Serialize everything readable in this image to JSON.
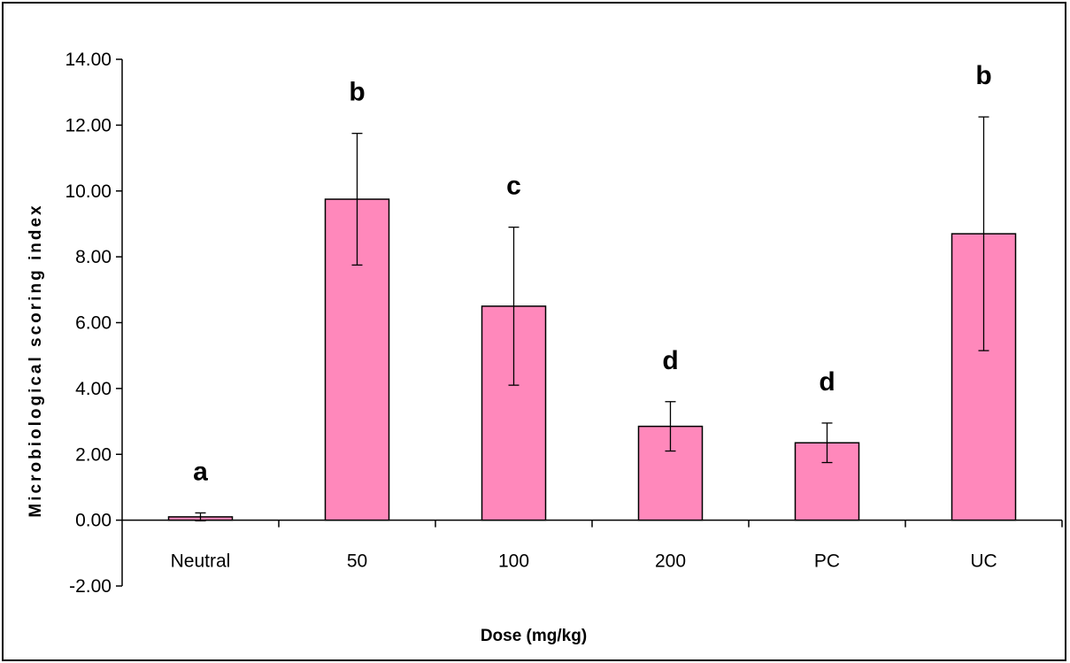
{
  "chart_data": {
    "type": "bar",
    "title": "",
    "xlabel": "Dose (mg/kg)",
    "ylabel": "Microbiological scoring index",
    "categories": [
      "Neutral",
      "50",
      "100",
      "200",
      "PC",
      "UC"
    ],
    "values": [
      0.1,
      9.75,
      6.5,
      2.85,
      2.35,
      8.7
    ],
    "error": [
      0.12,
      2.0,
      2.4,
      0.75,
      0.6,
      3.55
    ],
    "significance": [
      "a",
      "b",
      "c",
      "d",
      "d",
      "b"
    ],
    "ylim": [
      -2,
      14
    ],
    "yticks": [
      -2,
      0,
      2,
      4,
      6,
      8,
      10,
      12,
      14
    ],
    "ytick_labels": [
      "-2.00",
      "0.00",
      "2.00",
      "4.00",
      "6.00",
      "8.00",
      "10.00",
      "12.00",
      "14.00"
    ],
    "grid": false,
    "legend": "none",
    "bar_color": "#ff88bb"
  }
}
